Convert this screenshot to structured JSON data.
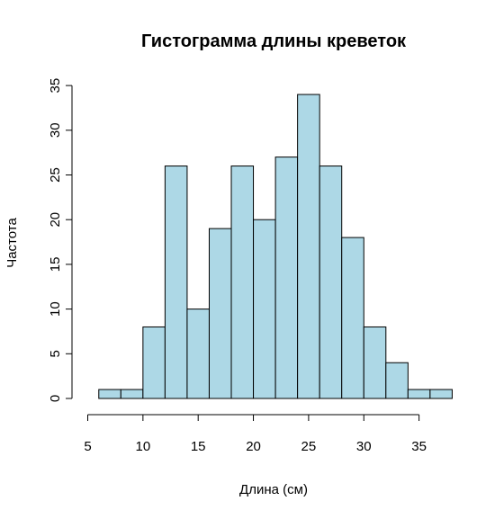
{
  "chart_data": {
    "type": "bar",
    "title": "Гистограмма длины креветок",
    "xlabel": "Длина (см)",
    "ylabel": "Частота",
    "bins": [
      {
        "x0": 6,
        "x1": 8,
        "count": 1
      },
      {
        "x0": 8,
        "x1": 10,
        "count": 1
      },
      {
        "x0": 10,
        "x1": 12,
        "count": 8
      },
      {
        "x0": 12,
        "x1": 14,
        "count": 26
      },
      {
        "x0": 14,
        "x1": 16,
        "count": 10
      },
      {
        "x0": 16,
        "x1": 18,
        "count": 19
      },
      {
        "x0": 18,
        "x1": 20,
        "count": 26
      },
      {
        "x0": 20,
        "x1": 22,
        "count": 20
      },
      {
        "x0": 22,
        "x1": 24,
        "count": 27
      },
      {
        "x0": 24,
        "x1": 26,
        "count": 34
      },
      {
        "x0": 26,
        "x1": 28,
        "count": 26
      },
      {
        "x0": 28,
        "x1": 30,
        "count": 18
      },
      {
        "x0": 30,
        "x1": 32,
        "count": 8
      },
      {
        "x0": 32,
        "x1": 34,
        "count": 4
      },
      {
        "x0": 34,
        "x1": 36,
        "count": 1
      },
      {
        "x0": 36,
        "x1": 38,
        "count": 1
      }
    ],
    "xticks": [
      5,
      10,
      15,
      20,
      25,
      30,
      35
    ],
    "yticks": [
      0,
      5,
      10,
      15,
      20,
      25,
      30,
      35
    ],
    "xlim": [
      5,
      38
    ],
    "ylim": [
      0,
      35
    ],
    "bar_color": "#add8e6",
    "edge_color": "#000000",
    "grid": false,
    "legend": "none"
  }
}
